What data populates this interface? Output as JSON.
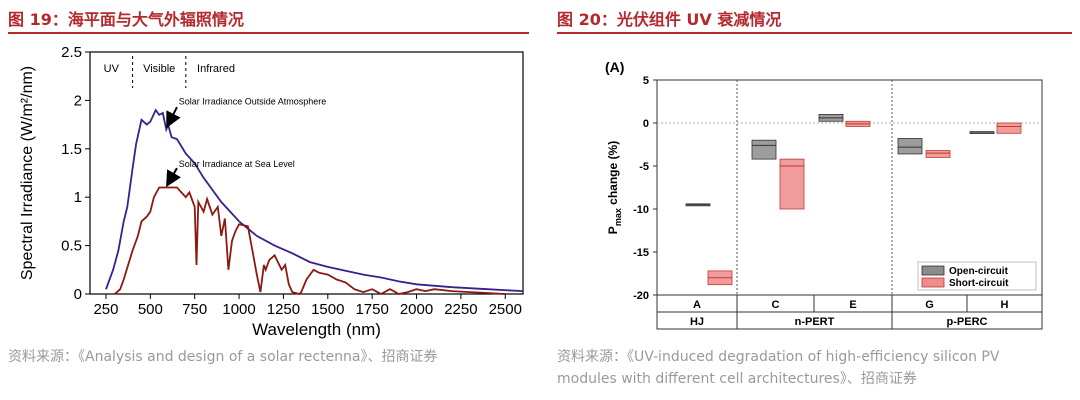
{
  "fig19": {
    "title": "图 19：海平面与大气外辐照情况",
    "source": "资料来源：《Analysis and design of a solar rectenna》、招商证券",
    "colors": {
      "outside": "#3a1f8f",
      "sea": "#8b1a10"
    },
    "chart_data": {
      "type": "line",
      "xlabel": "Wavelength (nm)",
      "ylabel": "Spectral Irradiance (W/m²/nm)",
      "xlim": [
        160,
        2600
      ],
      "ylim": [
        0,
        2.5
      ],
      "xticks": [
        "250",
        "500",
        "750",
        "1000",
        "1250",
        "1500",
        "1750",
        "2000",
        "2250",
        "2500"
      ],
      "xtick_values": [
        250,
        500,
        750,
        1000,
        1250,
        1500,
        1750,
        2000,
        2250,
        2500
      ],
      "yticks": [
        "0",
        "0.5",
        "1",
        "1.5",
        "2",
        "2.5"
      ],
      "ytick_values": [
        0,
        0.5,
        1,
        1.5,
        2,
        2.5
      ],
      "regions": [
        "UV",
        "Visible",
        "Infrared"
      ],
      "region_boundaries": [
        400,
        700
      ],
      "annotations": [
        "Solar Irradiance Outside Atmosphere",
        "Solar Irradiance at Sea Level"
      ],
      "series": [
        {
          "name": "Solar Irradiance Outside Atmosphere",
          "x": [
            250,
            290,
            320,
            350,
            370,
            400,
            420,
            450,
            480,
            500,
            530,
            550,
            570,
            590,
            600,
            620,
            650,
            700,
            750,
            800,
            900,
            1000,
            1100,
            1200,
            1300,
            1400,
            1500,
            1600,
            1700,
            1800,
            1900,
            2000,
            2200,
            2400,
            2600
          ],
          "y": [
            0.05,
            0.25,
            0.45,
            0.75,
            0.9,
            1.3,
            1.55,
            1.8,
            1.75,
            1.78,
            1.9,
            1.85,
            1.87,
            1.7,
            1.75,
            1.62,
            1.6,
            1.45,
            1.35,
            1.2,
            0.95,
            0.75,
            0.6,
            0.5,
            0.42,
            0.33,
            0.28,
            0.24,
            0.2,
            0.17,
            0.13,
            0.1,
            0.07,
            0.05,
            0.03
          ]
        },
        {
          "name": "Solar Irradiance at Sea Level",
          "x": [
            300,
            330,
            350,
            400,
            430,
            450,
            480,
            500,
            520,
            550,
            600,
            650,
            700,
            720,
            750,
            760,
            770,
            800,
            820,
            850,
            880,
            900,
            920,
            940,
            960,
            980,
            1000,
            1050,
            1080,
            1100,
            1120,
            1140,
            1150,
            1170,
            1200,
            1240,
            1260,
            1280,
            1300,
            1340,
            1350,
            1380,
            1400,
            1420,
            1450,
            1500,
            1550,
            1600,
            1650,
            1700,
            1750,
            1800,
            1850,
            1870,
            1900,
            1950,
            2000,
            2050,
            2100,
            2200,
            2300,
            2400,
            2500
          ],
          "y": [
            0,
            0.05,
            0.15,
            0.45,
            0.6,
            0.75,
            0.8,
            0.85,
            1.0,
            1.1,
            1.1,
            1.1,
            1.0,
            1.05,
            0.9,
            0.3,
            0.95,
            0.85,
            0.98,
            0.82,
            0.9,
            0.6,
            0.78,
            0.25,
            0.55,
            0.65,
            0.72,
            0.7,
            0.4,
            0.2,
            0.02,
            0.3,
            0.25,
            0.35,
            0.4,
            0.25,
            0.3,
            0.1,
            0.02,
            0.0,
            0.02,
            0.15,
            0.2,
            0.25,
            0.22,
            0.2,
            0.15,
            0.12,
            0.05,
            0.02,
            0.05,
            0.0,
            0.05,
            0.03,
            0.0,
            0.02,
            0.05,
            0.03,
            0.05,
            0.03,
            0.02,
            0.01,
            0.0
          ]
        }
      ]
    }
  },
  "fig20": {
    "title": "图 20：光伏组件 UV 衰减情况",
    "source_line1": "资料来源：《UV-induced degradation of high-efficiency silicon PV",
    "source_line2": "modules with different cell architectures》、招商证券",
    "colors": {
      "open": "#8c8c8c",
      "short": "#f08c8c",
      "open_edge": "#333333",
      "short_edge": "#c0392b"
    },
    "chart_data": {
      "type": "box",
      "panel_label": "(A)",
      "ylabel_prefix": "P",
      "ylabel_sub": "max",
      "ylabel_suffix": " change (%)",
      "ylim": [
        -20,
        5
      ],
      "yticks": [
        "5",
        "0",
        "-5",
        "-10",
        "-15",
        "-20"
      ],
      "ytick_values": [
        5,
        0,
        -5,
        -10,
        -15,
        -20
      ],
      "categories": [
        "A",
        "C",
        "E",
        "G",
        "H"
      ],
      "groups": [
        {
          "label": "HJ",
          "categories": [
            "A"
          ]
        },
        {
          "label": "n-PERT",
          "categories": [
            "C",
            "E"
          ]
        },
        {
          "label": "p-PERC",
          "categories": [
            "G",
            "H"
          ]
        }
      ],
      "legend": [
        "Open-circuit",
        "Short-circuit"
      ],
      "series": [
        {
          "name": "Open-circuit",
          "boxes": [
            {
              "cat": "A",
              "low": -9.6,
              "high": -9.4,
              "median": -9.5
            },
            {
              "cat": "C",
              "low": -4.2,
              "high": -2.0,
              "median": -2.6
            },
            {
              "cat": "E",
              "low": 0.2,
              "high": 1.0,
              "median": 0.6
            },
            {
              "cat": "G",
              "low": -3.6,
              "high": -1.8,
              "median": -2.8
            },
            {
              "cat": "H",
              "low": -1.15,
              "high": -1.0,
              "median": -1.05
            }
          ]
        },
        {
          "name": "Short-circuit",
          "boxes": [
            {
              "cat": "A",
              "low": -18.8,
              "high": -17.2,
              "median": -18.0
            },
            {
              "cat": "C",
              "low": -10.0,
              "high": -4.2,
              "median": -5.0
            },
            {
              "cat": "E",
              "low": -0.4,
              "high": 0.2,
              "median": -0.1
            },
            {
              "cat": "G",
              "low": -4.0,
              "high": -3.2,
              "median": -3.5
            },
            {
              "cat": "H",
              "low": -1.2,
              "high": 0.0,
              "median": -0.4
            }
          ]
        }
      ]
    }
  }
}
